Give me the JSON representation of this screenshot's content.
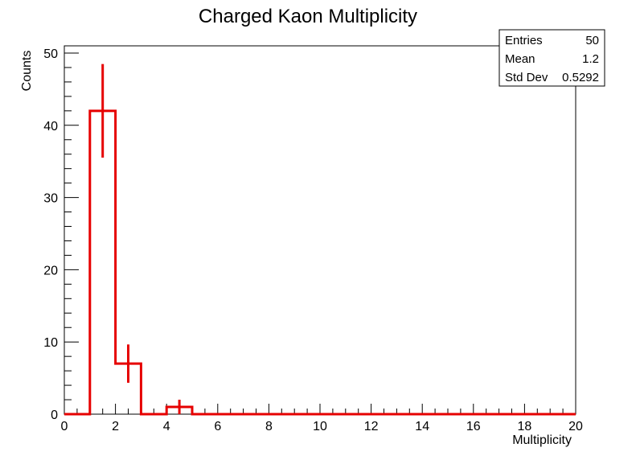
{
  "chart_data": {
    "type": "bar",
    "style": "step-histogram-with-error-bars",
    "title": "Charged Kaon Multiplicity",
    "xlabel": "Multiplicity",
    "ylabel": "Counts",
    "xlim": [
      0,
      20
    ],
    "ylim": [
      0,
      51
    ],
    "x_ticks": [
      0,
      2,
      4,
      6,
      8,
      10,
      12,
      14,
      16,
      18,
      20
    ],
    "y_ticks": [
      0,
      10,
      20,
      30,
      40,
      50
    ],
    "grid": false,
    "bin_width": 1,
    "bin_edges": [
      0,
      1,
      2,
      3,
      4,
      5,
      6,
      7,
      8,
      9,
      10,
      11,
      12,
      13,
      14,
      15,
      16,
      17,
      18,
      19,
      20
    ],
    "values": [
      0,
      42,
      7,
      0,
      1,
      0,
      0,
      0,
      0,
      0,
      0,
      0,
      0,
      0,
      0,
      0,
      0,
      0,
      0,
      0
    ],
    "errors": [
      0,
      6.48,
      2.65,
      0,
      1,
      0,
      0,
      0,
      0,
      0,
      0,
      0,
      0,
      0,
      0,
      0,
      0,
      0,
      0,
      0
    ],
    "line_color": "#e60000",
    "stats_box": {
      "placement": "top-right",
      "rows": [
        {
          "label": "Entries",
          "value": "50"
        },
        {
          "label": "Mean",
          "value": "1.2"
        },
        {
          "label": "Std Dev",
          "value": "0.5292"
        }
      ]
    }
  }
}
